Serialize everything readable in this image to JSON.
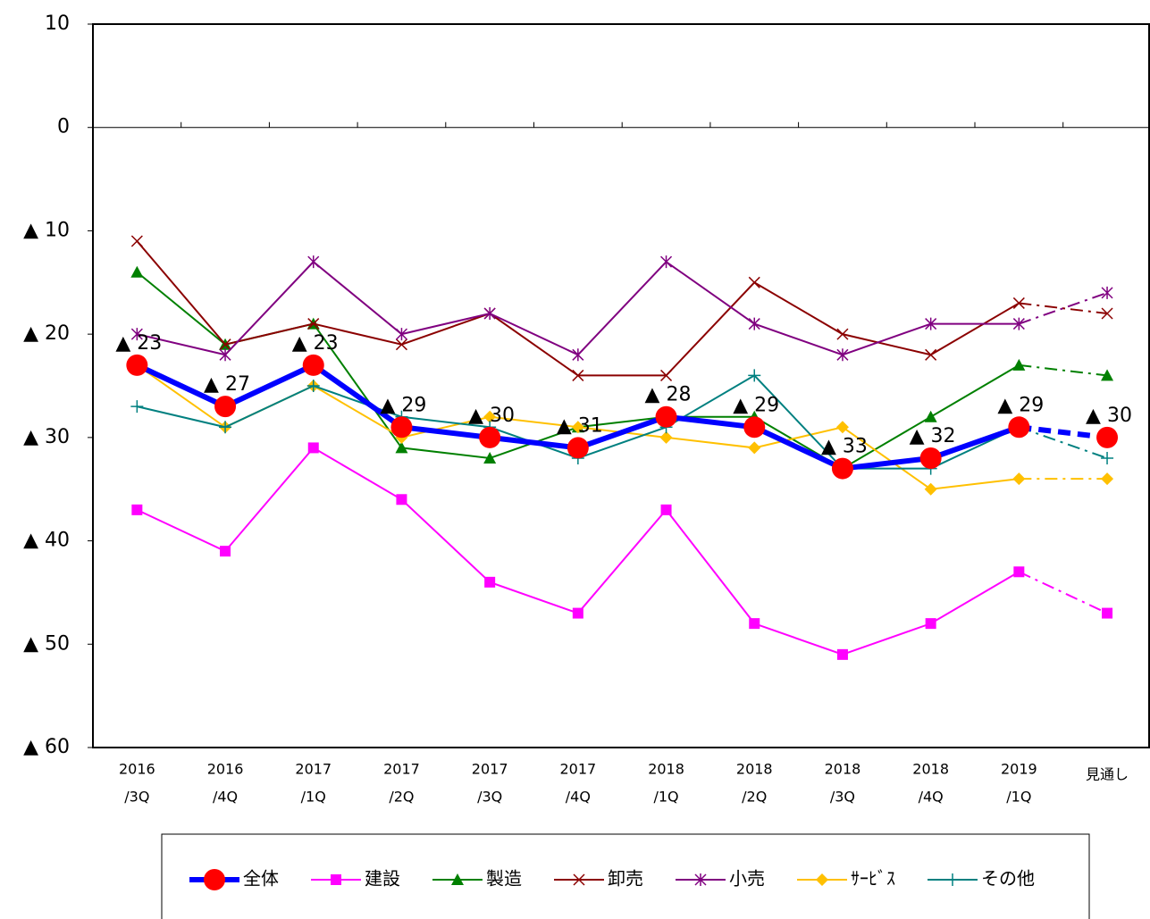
{
  "chart_data": {
    "type": "line",
    "categories": [
      [
        "2016",
        "/3Q"
      ],
      [
        "2016",
        "/4Q"
      ],
      [
        "2017",
        "/1Q"
      ],
      [
        "2017",
        "/2Q"
      ],
      [
        "2017",
        "/3Q"
      ],
      [
        "2017",
        "/4Q"
      ],
      [
        "2018",
        "/1Q"
      ],
      [
        "2018",
        "/2Q"
      ],
      [
        "2018",
        "/3Q"
      ],
      [
        "2018",
        "/4Q"
      ],
      [
        "2019",
        "/1Q"
      ],
      [
        "見通し"
      ]
    ],
    "ylim": [
      -60,
      10
    ],
    "yticks": [
      {
        "value": -60,
        "label": "▲ 60"
      },
      {
        "value": -50,
        "label": "▲ 50"
      },
      {
        "value": -40,
        "label": "▲ 40"
      },
      {
        "value": -30,
        "label": "▲ 30"
      },
      {
        "value": -20,
        "label": "▲ 20"
      },
      {
        "value": -10,
        "label": "▲ 10"
      },
      0,
      10
    ],
    "series": [
      {
        "name": "全体",
        "color": "#0000ff",
        "marker": "circle",
        "marker_color": "#ff0000",
        "values": [
          -23,
          -27,
          -23,
          -29,
          -30,
          -31,
          -28,
          -29,
          -33,
          -32,
          -29,
          -30
        ],
        "value_labels": [
          "▲ 23",
          "▲ 27",
          "▲ 23",
          "▲ 29",
          "▲ 30",
          "▲ 31",
          "▲ 28",
          "▲ 29",
          "▲ 33",
          "▲ 32",
          "▲ 29",
          "▲ 30"
        ]
      },
      {
        "name": "建設",
        "color": "#ff00ff",
        "marker": "square",
        "values": [
          -37,
          -41,
          -31,
          -36,
          -44,
          -47,
          -37,
          -48,
          -51,
          -48,
          -43,
          -47
        ]
      },
      {
        "name": "製造",
        "color": "#008000",
        "marker": "triangle",
        "values": [
          -14,
          -21,
          -19,
          -31,
          -32,
          -29,
          -28,
          -28,
          -33,
          -28,
          -23,
          -24
        ]
      },
      {
        "name": "卸売",
        "color": "#8b0000",
        "marker": "x",
        "values": [
          -11,
          -21,
          -19,
          -21,
          -18,
          -24,
          -24,
          -15,
          -20,
          -22,
          -17,
          -18
        ]
      },
      {
        "name": "小売",
        "color": "#800080",
        "marker": "star",
        "values": [
          -20,
          -22,
          -13,
          -20,
          -18,
          -22,
          -13,
          -19,
          -22,
          -19,
          -19,
          -16
        ]
      },
      {
        "name": "ｻｰﾋﾞｽ",
        "color": "#ffc000",
        "marker": "diamond",
        "values": [
          -23,
          -29,
          -25,
          -30,
          -28,
          -29,
          -30,
          -31,
          -29,
          -35,
          -34,
          -34
        ]
      },
      {
        "name": "その他",
        "color": "#008080",
        "marker": "plus",
        "values": [
          -27,
          -29,
          -25,
          -28,
          -29,
          -32,
          -29,
          -24,
          -33,
          -33,
          -29,
          -32
        ]
      }
    ]
  }
}
